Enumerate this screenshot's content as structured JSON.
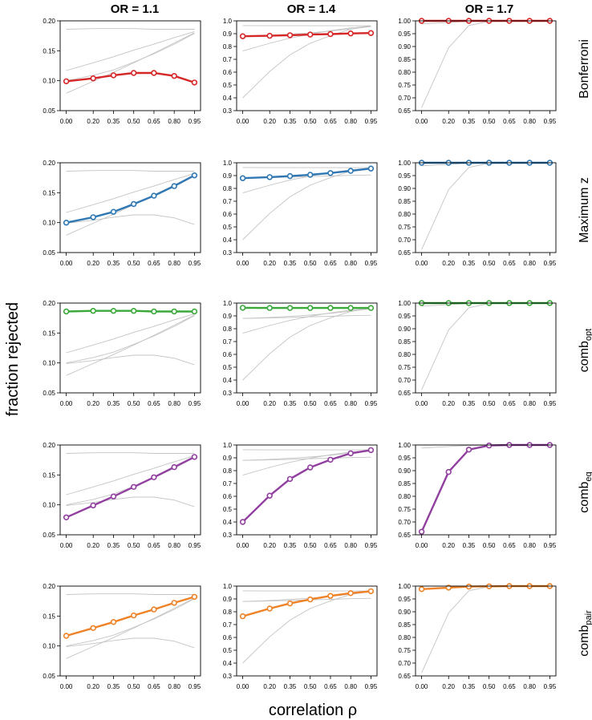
{
  "figure": {
    "ylabel": "fraction rejected",
    "xlabel": "correlation ρ"
  },
  "columns": [
    {
      "title": "OR = 1.1"
    },
    {
      "title": "OR = 1.4"
    },
    {
      "title": "OR = 1.7"
    }
  ],
  "rows": [
    {
      "label": "Bonferroni",
      "sub": "",
      "color": "#d62728"
    },
    {
      "label": "Maximum z",
      "sub": "",
      "color": "#2f78b4"
    },
    {
      "label": "comb",
      "sub": "opt",
      "color": "#3aa93a"
    },
    {
      "label": "comb",
      "sub": "eq",
      "color": "#9240a0"
    },
    {
      "label": "comb",
      "sub": "pair",
      "color": "#ef8226"
    }
  ],
  "chart_data": {
    "type": "line",
    "title": "",
    "xlabel": "correlation ρ",
    "ylabel": "fraction rejected",
    "x": [
      0.0,
      0.2,
      0.35,
      0.5,
      0.65,
      0.8,
      0.95
    ],
    "x_tick_labels": [
      "0.00",
      "0.20",
      "0.35",
      "0.50",
      "0.65",
      "0.80",
      "0.95"
    ],
    "background_color": "#c4c4c4",
    "ylims": [
      [
        0.05,
        0.2
      ],
      [
        0.3,
        1.0
      ],
      [
        0.65,
        1.0
      ]
    ],
    "y_ticks": [
      [
        "0.05",
        "0.10",
        "0.15",
        "0.20"
      ],
      [
        "0.3",
        "0.4",
        "0.5",
        "0.6",
        "0.7",
        "0.8",
        "0.9",
        "1.0"
      ],
      [
        "0.65",
        "0.70",
        "0.75",
        "0.80",
        "0.85",
        "0.90",
        "0.95",
        "1.00"
      ]
    ],
    "methods": [
      "Bonferroni",
      "Maximum z",
      "comb_opt",
      "comb_eq",
      "comb_pair"
    ],
    "series": [
      [
        [
          0.099,
          0.104,
          0.109,
          0.113,
          0.113,
          0.108,
          0.097
        ],
        [
          0.1,
          0.109,
          0.118,
          0.131,
          0.145,
          0.161,
          0.179
        ],
        [
          0.186,
          0.187,
          0.187,
          0.187,
          0.186,
          0.186,
          0.186
        ],
        [
          0.079,
          0.099,
          0.114,
          0.13,
          0.146,
          0.163,
          0.18
        ],
        [
          0.117,
          0.13,
          0.14,
          0.151,
          0.161,
          0.172,
          0.182
        ]
      ],
      [
        [
          0.88,
          0.884,
          0.888,
          0.893,
          0.897,
          0.902,
          0.905
        ],
        [
          0.88,
          0.888,
          0.896,
          0.906,
          0.92,
          0.937,
          0.955
        ],
        [
          0.963,
          0.962,
          0.962,
          0.962,
          0.962,
          0.962,
          0.962
        ],
        [
          0.4,
          0.605,
          0.735,
          0.825,
          0.885,
          0.935,
          0.96
        ],
        [
          0.765,
          0.825,
          0.865,
          0.896,
          0.924,
          0.945,
          0.96
        ]
      ],
      [
        [
          1.0,
          1.0,
          1.0,
          1.0,
          1.0,
          1.0,
          1.0
        ],
        [
          1.0,
          1.0,
          1.0,
          1.0,
          1.0,
          1.0,
          1.0
        ],
        [
          1.0,
          1.0,
          1.0,
          1.0,
          1.0,
          1.0,
          1.0
        ],
        [
          0.662,
          0.895,
          0.982,
          0.998,
          1.0,
          1.0,
          1.0
        ],
        [
          0.988,
          0.994,
          0.998,
          0.999,
          1.0,
          1.0,
          1.0
        ]
      ]
    ]
  }
}
